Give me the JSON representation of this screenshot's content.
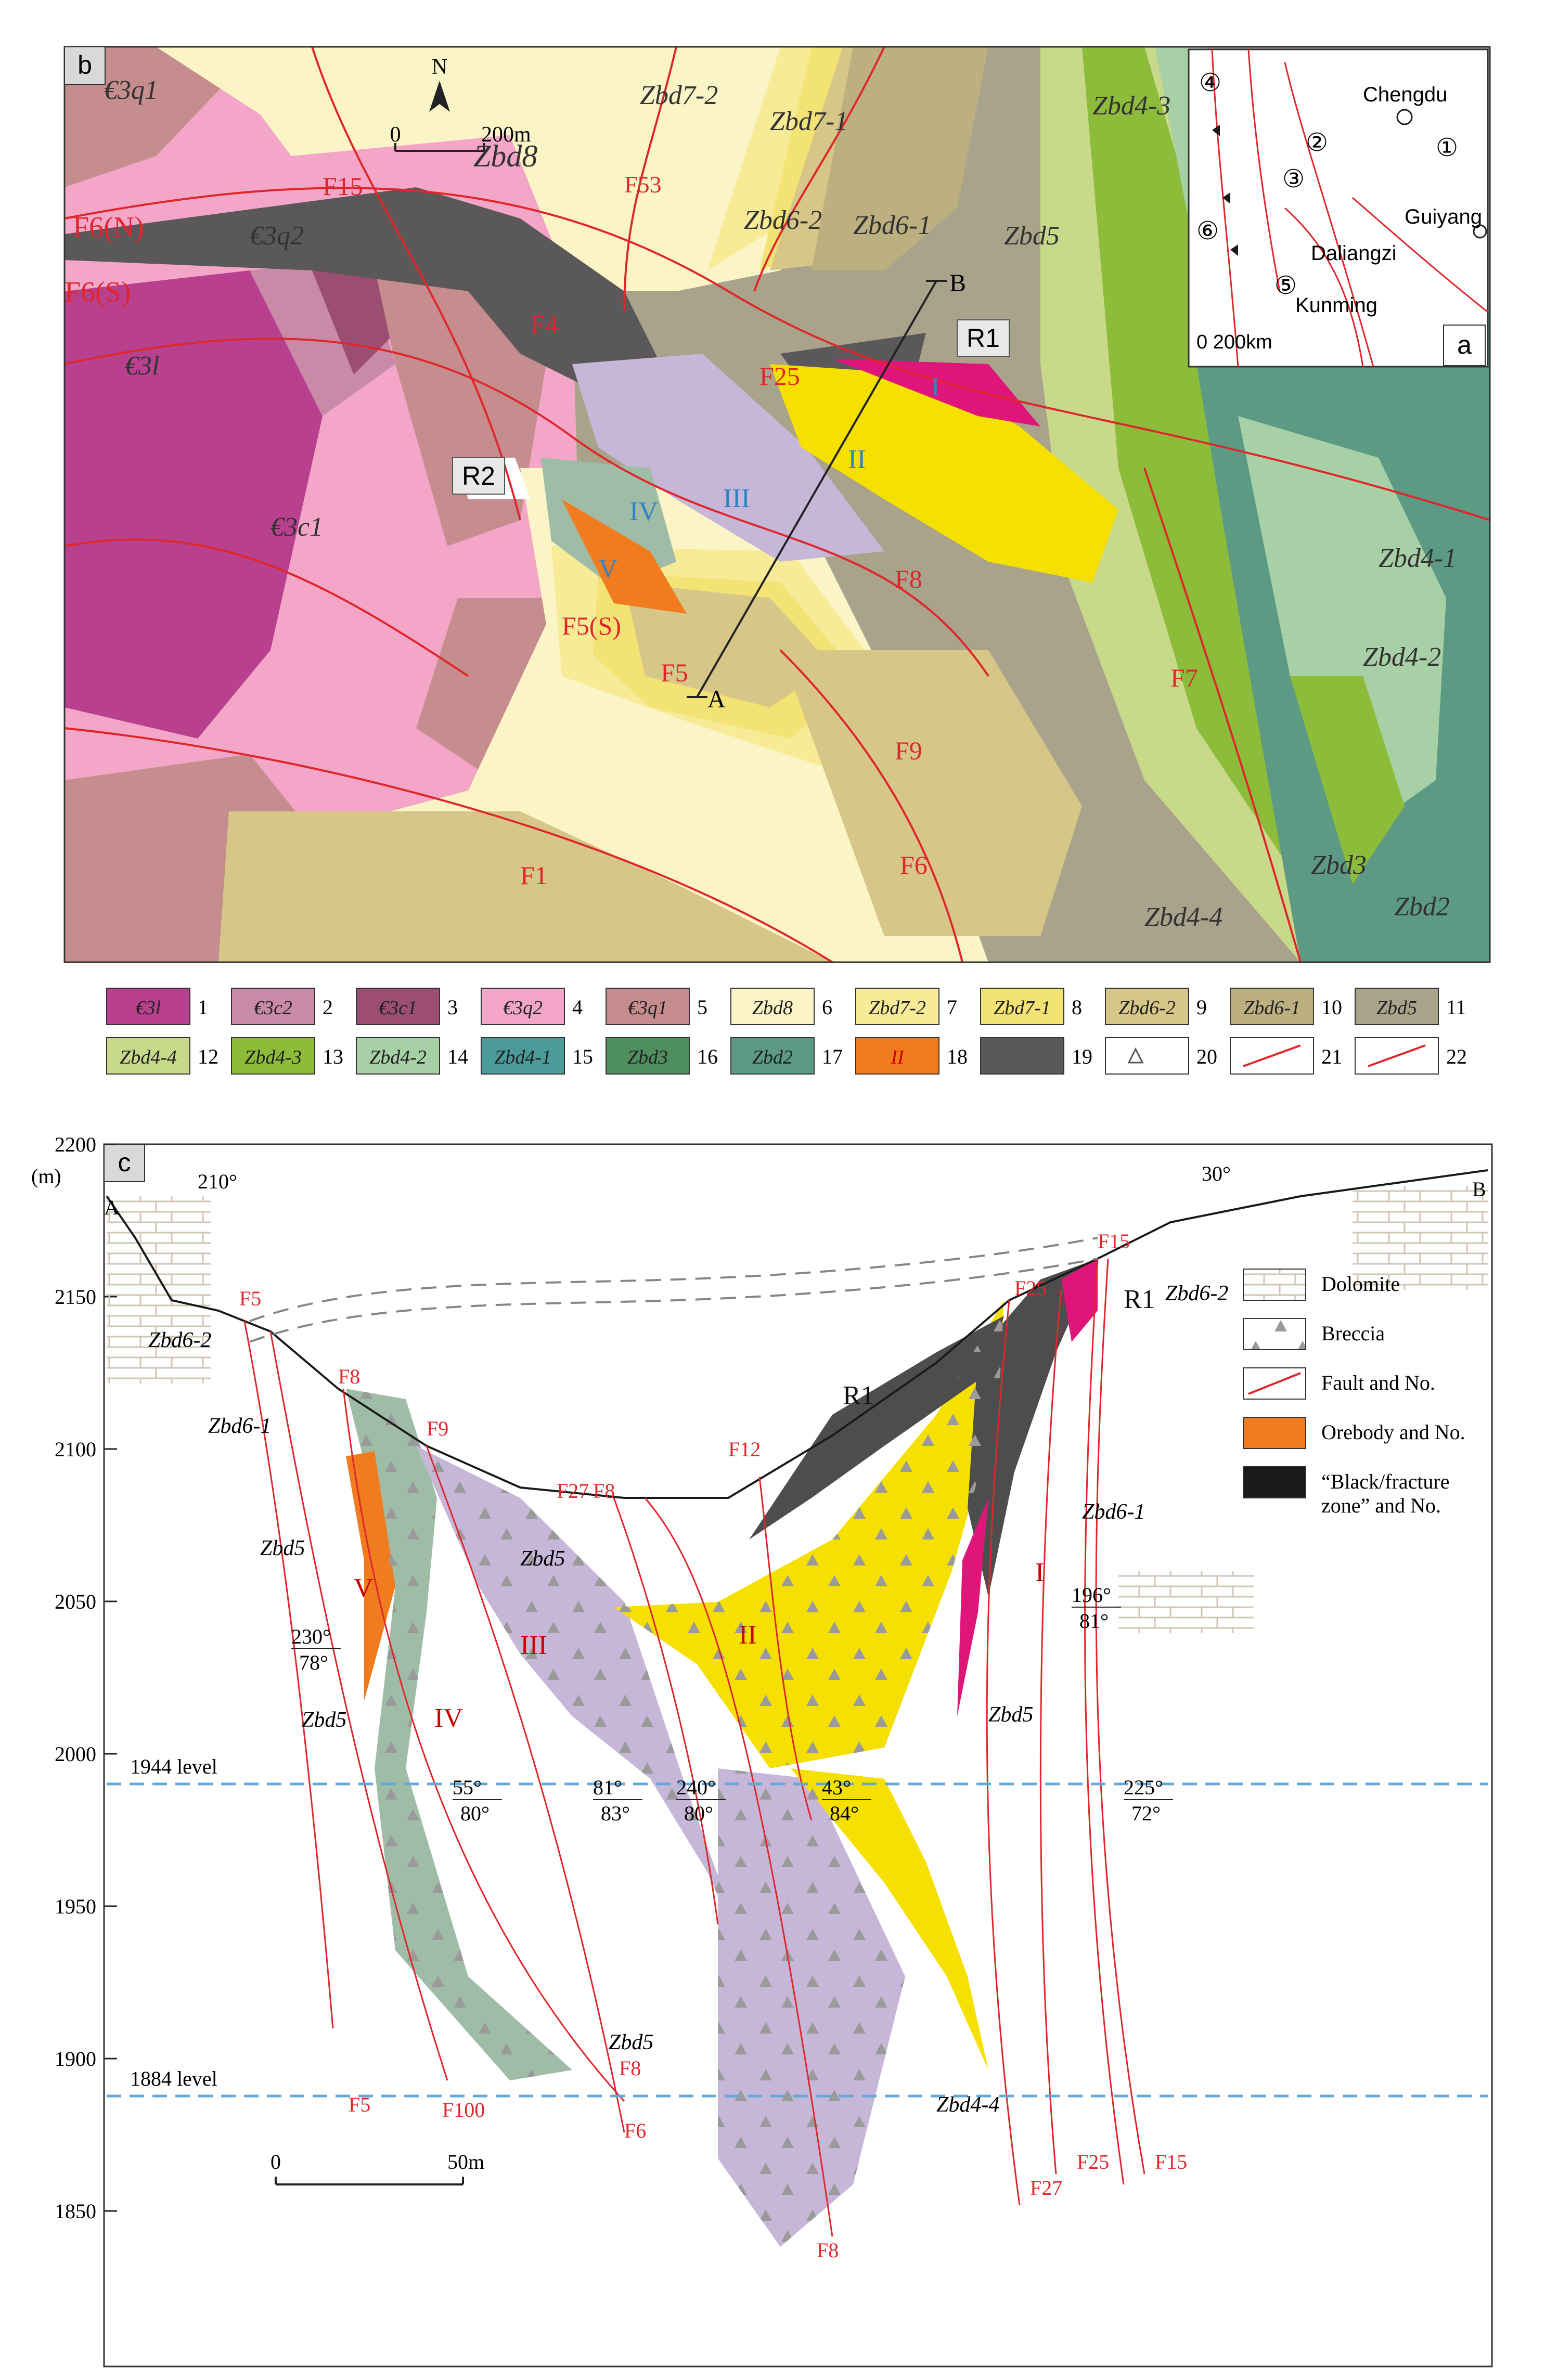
{
  "panel_b": {
    "tag": "b",
    "north": "N",
    "scale": {
      "start": "0",
      "end": "200m"
    },
    "units": [
      {
        "text": "€3q1"
      },
      {
        "text": "€3q2"
      },
      {
        "text": "F6(N)"
      },
      {
        "text": "F6(S)"
      },
      {
        "text": "€3l"
      },
      {
        "text": "€3c1"
      },
      {
        "text": "Zbd8"
      },
      {
        "text": "F15"
      },
      {
        "text": "F53"
      },
      {
        "text": "Zbd7-2"
      },
      {
        "text": "Zbd7-1"
      },
      {
        "text": "Zbd6-2"
      },
      {
        "text": "Zbd6-1"
      },
      {
        "text": "Zbd5"
      },
      {
        "text": "Zbd4-3"
      },
      {
        "text": "Zbd4-4"
      },
      {
        "text": "Zbd4-2"
      },
      {
        "text": "Zbd4-1"
      },
      {
        "text": "Zbd3"
      },
      {
        "text": "Zbd2"
      },
      {
        "text": "F4"
      },
      {
        "text": "F25"
      },
      {
        "text": "F8"
      },
      {
        "text": "F5"
      },
      {
        "text": "F5(S)"
      },
      {
        "text": "F9"
      },
      {
        "text": "F6"
      },
      {
        "text": "F7"
      },
      {
        "text": "F1"
      }
    ],
    "callouts": {
      "r1": "R1",
      "r2": "R2",
      "a": "A",
      "b": "B"
    },
    "orebodies": [
      "I",
      "II",
      "III",
      "IV",
      "V"
    ]
  },
  "panel_a": {
    "tag": "a",
    "cities": [
      "Chengdu",
      "Guiyang",
      "Daliangzi",
      "Kunming"
    ],
    "regions": [
      "①",
      "②",
      "③",
      "④",
      "⑤",
      "⑥"
    ],
    "scale": "0  200km"
  },
  "legend": [
    {
      "n": "1",
      "code": "€3l",
      "color": "#b8408f"
    },
    {
      "n": "2",
      "code": "€3c2",
      "color": "#c98aa8"
    },
    {
      "n": "3",
      "code": "€3c1",
      "color": "#9c4d72"
    },
    {
      "n": "4",
      "code": "€3q2",
      "color": "#f3a6c8"
    },
    {
      "n": "5",
      "code": "€3q1",
      "color": "#c68d8f"
    },
    {
      "n": "6",
      "code": "Zbd8",
      "color": "#fbf4c6"
    },
    {
      "n": "7",
      "code": "Zbd7-2",
      "color": "#f7eb98"
    },
    {
      "n": "8",
      "code": "Zbd7-1",
      "color": "#f3e374"
    },
    {
      "n": "9",
      "code": "Zbd6-2",
      "color": "#d6c687"
    },
    {
      "n": "10",
      "code": "Zbd6-1",
      "color": "#bcaf80"
    },
    {
      "n": "11",
      "code": "Zbd5",
      "color": "#a9a38b"
    },
    {
      "n": "12",
      "code": "Zbd4-4",
      "color": "#c9d98a"
    },
    {
      "n": "13",
      "code": "Zbd4-3",
      "color": "#8cbc3a"
    },
    {
      "n": "14",
      "code": "Zbd4-2",
      "color": "#a8d0a6"
    },
    {
      "n": "15",
      "code": "Zbd4-1",
      "color": "#4c9b9b"
    },
    {
      "n": "16",
      "code": "Zbd3",
      "color": "#4f8f5d"
    },
    {
      "n": "17",
      "code": "Zbd2",
      "color": "#5c9a84"
    },
    {
      "n": "18",
      "code": "II",
      "color": "#f07c1f"
    },
    {
      "n": "19",
      "code": "",
      "color": "#5b5859"
    },
    {
      "n": "20",
      "code": "",
      "color": "#ffffff"
    },
    {
      "n": "21",
      "code": "",
      "color": "#ffffff"
    },
    {
      "n": "22",
      "code": "",
      "color": "#ffffff"
    }
  ],
  "panel_c": {
    "tag": "c",
    "y_unit": "(m)",
    "y_ticks": [
      "2200",
      "2150",
      "2100",
      "2050",
      "2000",
      "1950",
      "1900",
      "1850"
    ],
    "ends": {
      "a": "A",
      "b": "B"
    },
    "attitudes": [
      "210°",
      "30°"
    ],
    "levels": [
      "1944 level",
      "1884 level"
    ],
    "scale": {
      "start": "0",
      "end": "50m"
    },
    "dips": [
      {
        "az": "230°",
        "dip": "78°"
      },
      {
        "az": "196°",
        "dip": "81°"
      },
      {
        "az": "55°",
        "dip": "80°"
      },
      {
        "az": "81°",
        "dip": "83°"
      },
      {
        "az": "240°",
        "dip": "80°"
      },
      {
        "az": "43°",
        "dip": "84°"
      },
      {
        "az": "225°",
        "dip": "72°"
      }
    ],
    "faults": [
      "F5",
      "F8",
      "F9",
      "F27",
      "F8",
      "F12",
      "F25",
      "F15",
      "F5",
      "F100",
      "F6",
      "F8",
      "F27",
      "F25",
      "F15",
      "F8"
    ],
    "units": [
      "Zbd6-2",
      "Zbd6-1",
      "Zbd5",
      "Zbd5",
      "Zbd5",
      "Zbd6-2",
      "Zbd6-1",
      "Zbd5",
      "Zbd5",
      "Zbd4-4"
    ],
    "bodies": [
      "V",
      "IV",
      "III",
      "II",
      "I",
      "R1",
      "R1"
    ],
    "legend": [
      {
        "label": "Dolomite"
      },
      {
        "label": "Breccia"
      },
      {
        "label": "Fault and No."
      },
      {
        "label": "Orebody and No."
      },
      {
        "label": "“Black/fracture zone” and No."
      }
    ]
  }
}
